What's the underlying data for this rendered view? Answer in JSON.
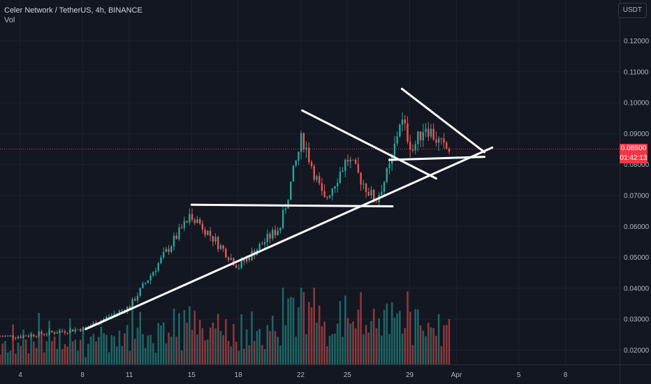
{
  "header": {
    "symbol": "Celer Network / TetherUS, 4h, BINANCE",
    "volume_label": "Vol",
    "currency_button": "USDT"
  },
  "price_tag": {
    "price": "0.08500",
    "countdown": "01:42:13",
    "color": "#f23645"
  },
  "chart_data": {
    "type": "candlestick",
    "interval": "4h",
    "exchange": "BINANCE",
    "y_axis_ticks": [
      "0.12000",
      "0.11000",
      "0.10000",
      "0.09000",
      "0.08000",
      "0.07000",
      "0.06000",
      "0.05000",
      "0.04000",
      "0.03000",
      "0.02000"
    ],
    "y_range": [
      0.0175,
      0.1305
    ],
    "x_axis_ticks": [
      {
        "label": "4",
        "day": 4
      },
      {
        "label": "8",
        "day": 8
      },
      {
        "label": "11",
        "day": 11
      },
      {
        "label": "15",
        "day": 15
      },
      {
        "label": "18",
        "day": 18
      },
      {
        "label": "22",
        "day": 22
      },
      {
        "label": "25",
        "day": 25
      },
      {
        "label": "29",
        "day": 29
      },
      {
        "label": "Apr",
        "day": 32
      },
      {
        "label": "5",
        "day": 36
      },
      {
        "label": "8",
        "day": 39
      }
    ],
    "current_price": 0.085,
    "colors": {
      "up": "#26a69a",
      "down": "#ef5350",
      "background": "#131722",
      "grid": "#1e222d",
      "annotation": "#ffffff"
    },
    "key_levels": [
      {
        "day": 4.0,
        "price": 0.0245
      },
      {
        "day": 8.1,
        "price": 0.027
      },
      {
        "day": 11.0,
        "price": 0.034
      },
      {
        "day": 15.0,
        "price": 0.064
      },
      {
        "day": 18.0,
        "price": 0.047
      },
      {
        "day": 20.7,
        "price": 0.06
      },
      {
        "day": 22.1,
        "price": 0.089
      },
      {
        "day": 23.5,
        "price": 0.068
      },
      {
        "day": 25.0,
        "price": 0.082
      },
      {
        "day": 26.8,
        "price": 0.068
      },
      {
        "day": 27.8,
        "price": 0.08
      },
      {
        "day": 28.4,
        "price": 0.095
      },
      {
        "day": 29.2,
        "price": 0.085
      },
      {
        "day": 30.0,
        "price": 0.093
      },
      {
        "day": 31.2,
        "price": 0.085
      }
    ],
    "trendlines": [
      {
        "from": {
          "day": 8.2,
          "price": 0.0268
        },
        "to": {
          "day": 34.3,
          "price": 0.0855
        }
      },
      {
        "from": {
          "day": 15.0,
          "price": 0.067
        },
        "to": {
          "day": 27.9,
          "price": 0.0665
        }
      },
      {
        "from": {
          "day": 22.1,
          "price": 0.0975
        },
        "to": {
          "day": 30.7,
          "price": 0.0755
        }
      },
      {
        "from": {
          "day": 27.7,
          "price": 0.0815
        },
        "to": {
          "day": 33.8,
          "price": 0.0825
        }
      },
      {
        "from": {
          "day": 28.5,
          "price": 0.1045
        },
        "to": {
          "day": 33.8,
          "price": 0.084
        }
      }
    ]
  }
}
